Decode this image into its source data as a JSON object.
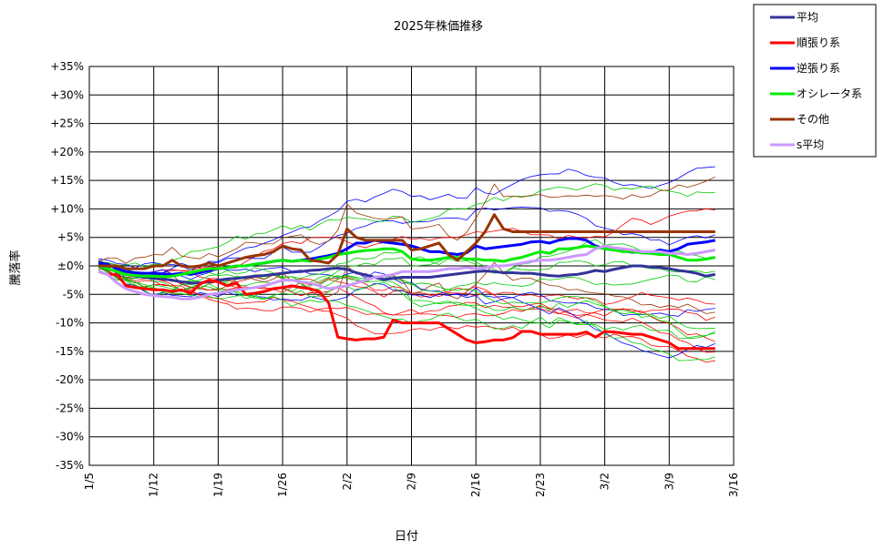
{
  "chart_data": {
    "type": "line",
    "title": "2025年株価推移",
    "xlabel": "日付",
    "ylabel": "騰落率",
    "x_tick_labels": [
      "1/5",
      "1/12",
      "1/19",
      "1/26",
      "2/2",
      "2/9",
      "2/16",
      "2/23",
      "3/2",
      "3/9",
      "3/16"
    ],
    "y_tick_labels": [
      "+35%",
      "+30%",
      "+25%",
      "+20%",
      "+15%",
      "+10%",
      "+5%",
      "±0%",
      "-5%",
      "-10%",
      "-15%",
      "-20%",
      "-25%",
      "-30%",
      "-35%"
    ],
    "ylim": [
      -35,
      35
    ],
    "x_days": [
      0,
      70
    ],
    "grid": true,
    "legend_placement": "right",
    "x": [
      1,
      2,
      3,
      4,
      5,
      6,
      7,
      8,
      9,
      10,
      11,
      12,
      13,
      14,
      15,
      16,
      17,
      18,
      19,
      20,
      21,
      22,
      23,
      24,
      25,
      26,
      27,
      28,
      29,
      30,
      31,
      32,
      33,
      34,
      35,
      36,
      37,
      38,
      39,
      40,
      41,
      42,
      43,
      44,
      45,
      46,
      47,
      48,
      49,
      50,
      51,
      52,
      53,
      54,
      55,
      56,
      57,
      58,
      59,
      60,
      61,
      62,
      63,
      64,
      65,
      66,
      67,
      68
    ],
    "series": [
      {
        "name": "平均",
        "color": "#333399",
        "width": 3,
        "values": [
          0,
          -0.5,
          -1,
          -1.5,
          -1.8,
          -2,
          -2.2,
          -2.3,
          -2.5,
          -2.8,
          -3,
          -3,
          -2.8,
          -2.5,
          -2.3,
          -2.2,
          -2,
          -1.8,
          -1.7,
          -1.5,
          -1.3,
          -1.1,
          -1,
          -0.8,
          -0.7,
          -0.5,
          -0.4,
          -0.6,
          -1.2,
          -1.6,
          -2,
          -2.4,
          -2.2,
          -2,
          -2,
          -2,
          -2,
          -1.8,
          -1.6,
          -1.4,
          -1.2,
          -1,
          -0.9,
          -1,
          -1.2,
          -1.2,
          -1.3,
          -1.3,
          -1.5,
          -1.7,
          -1.8,
          -1.6,
          -1.5,
          -1.2,
          -0.8,
          -1,
          -0.6,
          -0.3,
          0,
          0,
          -0.2,
          -0.3,
          -0.5,
          -0.8,
          -1,
          -1.3,
          -1.8,
          -1.5
        ]
      },
      {
        "name": "順張り系",
        "color": "#ff0000",
        "width": 3,
        "values": [
          -1,
          -1.5,
          -1.5,
          -3.5,
          -3.8,
          -4,
          -4.2,
          -4.2,
          -4.5,
          -4.2,
          -4.8,
          -3.2,
          -2.5,
          -2.8,
          -3.5,
          -3,
          -5,
          -4.8,
          -4.5,
          -4,
          -3.8,
          -3.5,
          -3.8,
          -4,
          -4.5,
          -6.5,
          -12.5,
          -12.8,
          -13,
          -12.8,
          -12.8,
          -12.5,
          -9.5,
          -10,
          -10,
          -10,
          -10,
          -10,
          -11,
          -12,
          -13,
          -13.5,
          -13.3,
          -13,
          -13,
          -12.6,
          -11.5,
          -11.5,
          -12,
          -12,
          -12,
          -12,
          -12,
          -11.6,
          -12.5,
          -11.5,
          -11.6,
          -11.8,
          -12,
          -12,
          -12.5,
          -13,
          -13.5,
          -14.5,
          -14.5,
          -14.5,
          -14.5,
          -14.5
        ]
      },
      {
        "name": "逆張り系",
        "color": "#0000ff",
        "width": 3,
        "values": [
          0.5,
          0.3,
          -0.5,
          -1,
          -1.2,
          -1.3,
          -1.3,
          -1.4,
          -1.5,
          -1.3,
          -1.5,
          -1.2,
          -0.8,
          -0.5,
          -0.3,
          0,
          0,
          0.3,
          0.5,
          0.8,
          1,
          0.8,
          1,
          1.2,
          1.5,
          1.8,
          2.2,
          3,
          4,
          4,
          4.5,
          4.2,
          4,
          3.8,
          3.5,
          3,
          2.5,
          2.5,
          2.2,
          2,
          2.3,
          3.5,
          3,
          3.2,
          3.4,
          3.6,
          3.8,
          4.2,
          4.3,
          4,
          4.5,
          4.8,
          4.8,
          4.5,
          3.5,
          3,
          2.8,
          2.6,
          2.4,
          2.5,
          2.3,
          2.8,
          2.5,
          3,
          3.8,
          4,
          4.2,
          4.5
        ]
      },
      {
        "name": "オシレータ系",
        "color": "#00ee00",
        "width": 3,
        "values": [
          0,
          -0.5,
          -1,
          -1.5,
          -1.7,
          -1.8,
          -1.8,
          -1.9,
          -1.8,
          -1.5,
          -1.2,
          -0.8,
          -0.5,
          -0.5,
          -0.3,
          0,
          0,
          0.3,
          0.5,
          0.8,
          1,
          0.8,
          1,
          0.8,
          1.2,
          1.5,
          2,
          2.2,
          2.5,
          2.7,
          2.8,
          3,
          3,
          2.5,
          1.2,
          1,
          1,
          1.2,
          1.5,
          1.5,
          1.2,
          1.2,
          1,
          1,
          0.8,
          1.2,
          1.5,
          2,
          2.5,
          2.2,
          3,
          3,
          3.2,
          3.5,
          3.3,
          3,
          2.8,
          2.5,
          2.5,
          2.3,
          2.2,
          2,
          2,
          1.5,
          1,
          1,
          1.2,
          1.5
        ]
      },
      {
        "name": "その他",
        "color": "#993300",
        "width": 3,
        "values": [
          0,
          0,
          0,
          -0.5,
          -0.5,
          -0.5,
          0,
          0,
          1,
          0,
          -0.2,
          0,
          0.5,
          0,
          0.5,
          1,
          1.5,
          1.8,
          2,
          2.5,
          3.5,
          3,
          2.8,
          1,
          0.8,
          0.5,
          2,
          6.5,
          5,
          4.5,
          4.5,
          4.5,
          4.5,
          4.5,
          2.8,
          3,
          3.5,
          4,
          2,
          1,
          2.5,
          4,
          6,
          9,
          6.5,
          6,
          6,
          6,
          6,
          6,
          6,
          6,
          6,
          6,
          6,
          6,
          6,
          6,
          6,
          6,
          6,
          6,
          6,
          6,
          6,
          6,
          6,
          6
        ]
      },
      {
        "name": "s平均",
        "color": "#cc99ff",
        "width": 3,
        "values": [
          -1,
          -1.5,
          -3,
          -4,
          -4.5,
          -5,
          -5.2,
          -5.4,
          -5.5,
          -5.8,
          -5.8,
          -5.5,
          -5,
          -4.8,
          -4.5,
          -4.2,
          -4,
          -3.8,
          -3.5,
          -3,
          -2.5,
          -2.5,
          -2.8,
          -3,
          -3.5,
          -4,
          -3.8,
          -3.5,
          -3,
          -2.5,
          -2,
          -1.8,
          -1.5,
          -1,
          -1,
          -1,
          -1,
          -0.8,
          -0.5,
          -0.5,
          -0.3,
          -0.5,
          -0.3,
          0,
          0,
          0.2,
          0.5,
          0.8,
          1,
          1,
          1.2,
          1.5,
          1.8,
          2,
          3,
          3.5,
          3.2,
          3,
          2.8,
          2.5,
          2.5,
          2.5,
          2.2,
          2.2,
          2,
          2.2,
          2.5,
          2.8
        ]
      }
    ]
  }
}
